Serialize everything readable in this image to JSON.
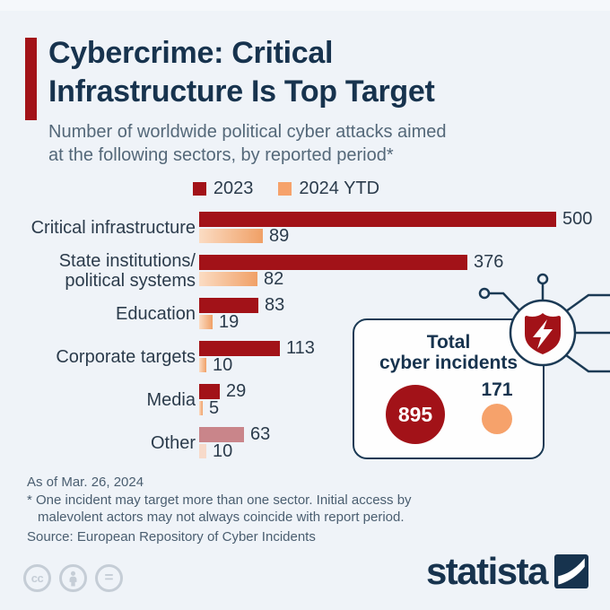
{
  "colors": {
    "background": "#EFF3F8",
    "dark_red": "#A21218",
    "orange": "#F6A26B",
    "navy": "#1B3A55",
    "other_2023": "#C9858A",
    "other_2024": "#F7DACA"
  },
  "header": {
    "title_lines": [
      "Cybercrime: Critical",
      "Infrastructure Is Top Target"
    ],
    "subtitle_lines": [
      "Number of worldwide political cyber attacks aimed",
      "at the following sectors, by reported period*"
    ]
  },
  "legend": {
    "items": [
      {
        "label": "2023",
        "color": "#A21218"
      },
      {
        "label": "2024 YTD",
        "color": "#F6A26B"
      }
    ]
  },
  "chart_data": {
    "type": "bar",
    "orientation": "horizontal",
    "title": "Cybercrime: Critical Infrastructure Is Top Target",
    "categories": [
      "Critical infrastructure",
      "State institutions/\npolitical systems",
      "Education",
      "Corporate targets",
      "Media",
      "Other"
    ],
    "series": [
      {
        "name": "2023",
        "values": [
          500,
          376,
          83,
          113,
          29,
          63
        ],
        "color": "#A21218",
        "bar_colors": [
          "#A21218",
          "#A21218",
          "#A21218",
          "#A21218",
          "#A21218",
          "#C9858A"
        ]
      },
      {
        "name": "2024 YTD",
        "values": [
          89,
          82,
          19,
          10,
          5,
          10
        ],
        "color": "#F6A26B",
        "gradient": [
          "#FBDCC3",
          "#F0A066"
        ],
        "bar_colors": [
          "gradient",
          "gradient",
          "gradient",
          "gradient",
          "gradient",
          "#F7DACA"
        ]
      }
    ],
    "xlim": [
      0,
      500
    ],
    "value_labels": true,
    "grid": false,
    "legend_position": "top"
  },
  "inset": {
    "title_lines": [
      "Total",
      "cyber incidents"
    ],
    "value_2023": "895",
    "value_2024": "171",
    "circle_2023_color": "#A21218",
    "circle_2024_color": "#F6A26B"
  },
  "footer": {
    "as_of": "As of Mar. 26, 2024",
    "footnote_lines": [
      "* One incident may target more than one sector. Initial access by",
      "malevolent actors may not always coincide with report period."
    ],
    "source": "Source: European Repository of Cyber Incidents"
  },
  "branding": {
    "logo_text": "statista",
    "license_icons": [
      "cc-icon",
      "attribution-person-icon",
      "equals-icon"
    ]
  },
  "decoration": {
    "icon": "shield-lightning-icon"
  }
}
